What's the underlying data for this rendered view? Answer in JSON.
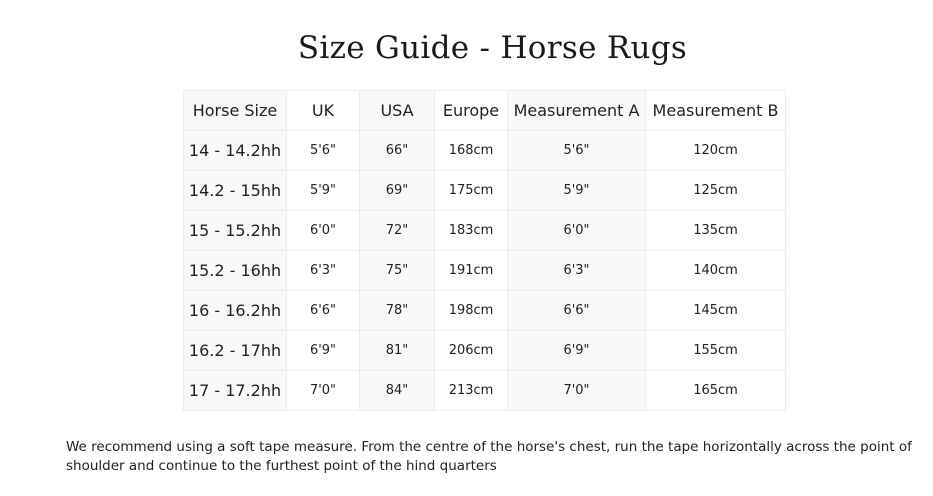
{
  "title": "Size Guide - Horse Rugs",
  "table": {
    "headers": [
      "Horse Size",
      "UK",
      "USA",
      "Europe",
      "Measurement A",
      "Measurement B"
    ],
    "rows": [
      [
        "14 - 14.2hh",
        "5'6\"",
        "66\"",
        "168cm",
        "5'6\"",
        "120cm"
      ],
      [
        "14.2 - 15hh",
        "5'9\"",
        "69\"",
        "175cm",
        "5'9\"",
        "125cm"
      ],
      [
        "15 - 15.2hh",
        "6'0\"",
        "72\"",
        "183cm",
        "6'0\"",
        "135cm"
      ],
      [
        "15.2 - 16hh",
        "6'3\"",
        "75\"",
        "191cm",
        "6'3\"",
        "140cm"
      ],
      [
        "16 - 16.2hh",
        "6'6\"",
        "78\"",
        "198cm",
        "6'6\"",
        "145cm"
      ],
      [
        "16.2 - 17hh",
        "6'9\"",
        "81\"",
        "206cm",
        "6'9\"",
        "155cm"
      ],
      [
        "17 - 17.2hh",
        "7'0\"",
        "84\"",
        "213cm",
        "7'0\"",
        "165cm"
      ]
    ]
  },
  "note": "We recommend using a soft tape measure. From the centre of the horse's chest, run the tape horizontally across the point of shoulder and continue to the furthest point of the hind quarters"
}
